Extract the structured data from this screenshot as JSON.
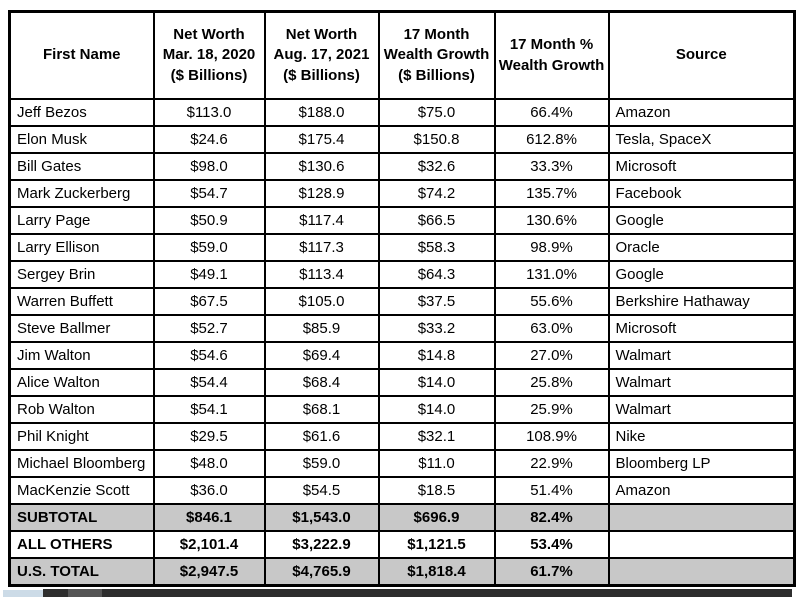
{
  "chart_data": {
    "type": "table",
    "title": "",
    "columns": [
      "First Name",
      "Net Worth\nMar. 18, 2020\n($ Billions)",
      "Net Worth\nAug. 17, 2021\n($ Billions)",
      "17 Month\nWealth Growth\n($ Billions)",
      "17 Month %\nWealth Growth",
      "Source"
    ],
    "rows": [
      {
        "cells": [
          "Jeff Bezos",
          "$113.0",
          "$188.0",
          "$75.0",
          "66.4%",
          "Amazon"
        ],
        "shaded": false,
        "bold": false
      },
      {
        "cells": [
          "Elon Musk",
          "$24.6",
          "$175.4",
          "$150.8",
          "612.8%",
          "Tesla, SpaceX"
        ],
        "shaded": false,
        "bold": false
      },
      {
        "cells": [
          "Bill Gates",
          "$98.0",
          "$130.6",
          "$32.6",
          "33.3%",
          "Microsoft"
        ],
        "shaded": false,
        "bold": false
      },
      {
        "cells": [
          "Mark Zuckerberg",
          "$54.7",
          "$128.9",
          "$74.2",
          "135.7%",
          "Facebook"
        ],
        "shaded": false,
        "bold": false
      },
      {
        "cells": [
          "Larry Page",
          "$50.9",
          "$117.4",
          "$66.5",
          "130.6%",
          "Google"
        ],
        "shaded": false,
        "bold": false
      },
      {
        "cells": [
          "Larry Ellison",
          "$59.0",
          "$117.3",
          "$58.3",
          "98.9%",
          "Oracle"
        ],
        "shaded": false,
        "bold": false
      },
      {
        "cells": [
          "Sergey Brin",
          "$49.1",
          "$113.4",
          "$64.3",
          "131.0%",
          "Google"
        ],
        "shaded": false,
        "bold": false
      },
      {
        "cells": [
          "Warren Buffett",
          "$67.5",
          "$105.0",
          "$37.5",
          "55.6%",
          "Berkshire Hathaway"
        ],
        "shaded": false,
        "bold": false
      },
      {
        "cells": [
          "Steve Ballmer",
          "$52.7",
          "$85.9",
          "$33.2",
          "63.0%",
          "Microsoft"
        ],
        "shaded": false,
        "bold": false
      },
      {
        "cells": [
          "Jim Walton",
          "$54.6",
          "$69.4",
          "$14.8",
          "27.0%",
          "Walmart"
        ],
        "shaded": false,
        "bold": false
      },
      {
        "cells": [
          "Alice Walton",
          "$54.4",
          "$68.4",
          "$14.0",
          "25.8%",
          "Walmart"
        ],
        "shaded": false,
        "bold": false
      },
      {
        "cells": [
          "Rob Walton",
          "$54.1",
          "$68.1",
          "$14.0",
          "25.9%",
          "Walmart"
        ],
        "shaded": false,
        "bold": false
      },
      {
        "cells": [
          "Phil Knight",
          "$29.5",
          "$61.6",
          "$32.1",
          "108.9%",
          "Nike"
        ],
        "shaded": false,
        "bold": false
      },
      {
        "cells": [
          "Michael Bloomberg",
          "$48.0",
          "$59.0",
          "$11.0",
          "22.9%",
          "Bloomberg LP"
        ],
        "shaded": false,
        "bold": false
      },
      {
        "cells": [
          "MacKenzie Scott",
          "$36.0",
          "$54.5",
          "$18.5",
          "51.4%",
          "Amazon"
        ],
        "shaded": false,
        "bold": false
      },
      {
        "cells": [
          "SUBTOTAL",
          "$846.1",
          "$1,543.0",
          "$696.9",
          "82.4%",
          ""
        ],
        "shaded": true,
        "bold": true
      },
      {
        "cells": [
          "ALL OTHERS",
          "$2,101.4",
          "$3,222.9",
          "$1,121.5",
          "53.4%",
          ""
        ],
        "shaded": false,
        "bold": true
      },
      {
        "cells": [
          "U.S. TOTAL",
          "$2,947.5",
          "$4,765.9",
          "$1,818.4",
          "61.7%",
          ""
        ],
        "shaded": true,
        "bold": true
      }
    ],
    "layout_hints": {
      "numeric_columns_alignment": "center",
      "text_columns_alignment": "left",
      "grid": "on"
    }
  },
  "colors": {
    "border": "#000000",
    "shaded_row_bg": "#c8c8c8",
    "header_bg": "#ffffff",
    "bottom_bar_dark": "#2e2e2e",
    "bottom_bar_mid": "#555555",
    "bottom_bar_accent": "#ccdbe7"
  }
}
